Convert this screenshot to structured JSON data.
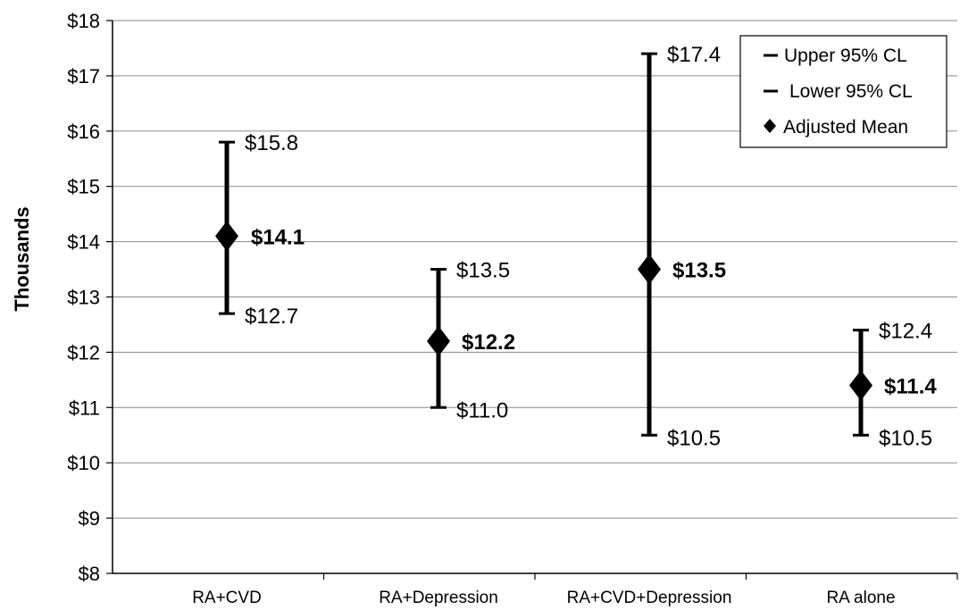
{
  "chart_data": {
    "type": "error-bar",
    "ylabel": "Thousands",
    "ylim": [
      8,
      18
    ],
    "yticks": [
      "$8",
      "$9",
      "$10",
      "$11",
      "$12",
      "$13",
      "$14",
      "$15",
      "$16",
      "$17",
      "$18"
    ],
    "grid": "horizontal",
    "legend_position": "top-right",
    "categories": [
      "RA+CVD",
      "RA+Depression",
      "RA+CVD+Depression",
      "RA alone"
    ],
    "series": [
      {
        "name": "Upper 95% CL",
        "values": [
          15.8,
          13.5,
          17.4,
          12.4
        ],
        "labels": [
          "$15.8",
          "$13.5",
          "$17.4",
          "$12.4"
        ]
      },
      {
        "name": "Lower 95% CL",
        "values": [
          12.7,
          11.0,
          10.5,
          10.5
        ],
        "labels": [
          "$12.7",
          "$11.0",
          "$10.5",
          "$10.5"
        ]
      },
      {
        "name": "Adjusted Mean",
        "values": [
          14.1,
          12.2,
          13.5,
          11.4
        ],
        "labels": [
          "$14.1",
          "$12.2",
          "$13.5",
          "$11.4"
        ]
      }
    ]
  }
}
